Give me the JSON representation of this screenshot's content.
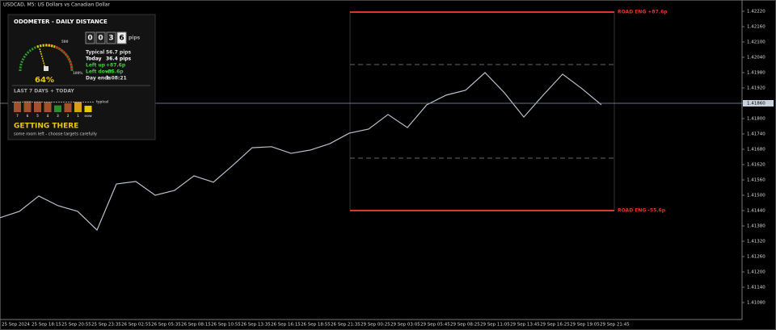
{
  "window": {
    "title": "USDCAD, M5:  US Dollars vs Canadian Dollar"
  },
  "odometer": {
    "title": "ODOMETER  -  DAILY DISTANCE",
    "digits": [
      "0",
      "0",
      "3",
      "6"
    ],
    "unit": "pips",
    "gauge_max": "500",
    "gauge_full": "100%",
    "percent": "64%",
    "stats": [
      [
        "Typical",
        "56.7 pips"
      ],
      [
        "Today",
        "36.4 pips"
      ],
      [
        "Left up",
        "+87.6p"
      ],
      [
        "Left down",
        "-55.6p"
      ],
      [
        "Day ends",
        "1:08:21"
      ]
    ],
    "history_title": "LAST 7 DAYS + TODAY",
    "typical_label": "typical",
    "history": {
      "labels": [
        "7",
        "6",
        "5",
        "4",
        "3",
        "2",
        "1",
        "now"
      ],
      "values": [
        60,
        62,
        60,
        58,
        38,
        50,
        58,
        36
      ],
      "colors": [
        "#a0522d",
        "#a0522d",
        "#a0522d",
        "#a0522d",
        "#2e8b2e",
        "#a0522d",
        "#d4a017",
        "#e8c800"
      ],
      "typical": 56.7
    },
    "status": "GETTING THERE",
    "note": "some room left - choose targets carefully"
  },
  "levels": {
    "upper": "ROAD ENG  +87.6p",
    "lower": "ROAD ENG  -55.6p"
  },
  "chart_data": {
    "type": "line",
    "color": "#b8c2cc",
    "values": [
      1.41412,
      1.41437,
      1.41497,
      1.41459,
      1.41437,
      1.41364,
      1.41544,
      1.41554,
      1.415,
      1.41519,
      1.41576,
      1.41551,
      1.41617,
      1.41686,
      1.4169,
      1.41664,
      1.41677,
      1.41702,
      1.41743,
      1.41759,
      1.41816,
      1.41765,
      1.41854,
      1.41892,
      1.41911,
      1.4198,
      1.41901,
      1.41806,
      1.41892,
      1.41974,
      1.41917,
      1.41854
    ],
    "current": {
      "value": 1.4186,
      "label": "1.41860"
    },
    "ylim": [
      1.4108,
      1.4222
    ],
    "yticks": [
      {
        "value": 1.4222,
        "label": "1.42220"
      },
      {
        "value": 1.4216,
        "label": "1.42160"
      },
      {
        "value": 1.421,
        "label": "1.42100"
      },
      {
        "value": 1.4204,
        "label": "1.42040"
      },
      {
        "value": 1.4198,
        "label": "1.41980"
      },
      {
        "value": 1.4192,
        "label": "1.41920"
      },
      {
        "value": 1.4186,
        "label": "1.41860"
      },
      {
        "value": 1.418,
        "label": "1.41800"
      },
      {
        "value": 1.4174,
        "label": "1.41740"
      },
      {
        "value": 1.4168,
        "label": "1.41680"
      },
      {
        "value": 1.4162,
        "label": "1.41620"
      },
      {
        "value": 1.4156,
        "label": "1.41560"
      },
      {
        "value": 1.415,
        "label": "1.41500"
      },
      {
        "value": 1.4144,
        "label": "1.41440"
      },
      {
        "value": 1.4138,
        "label": "1.41380"
      },
      {
        "value": 1.4132,
        "label": "1.41320"
      },
      {
        "value": 1.4126,
        "label": "1.41260"
      },
      {
        "value": 1.412,
        "label": "1.41200"
      },
      {
        "value": 1.4114,
        "label": "1.41140"
      },
      {
        "value": 1.4108,
        "label": "1.41080"
      }
    ],
    "xlabels": [
      "25 Sep 2024",
      "25 Sep 18:15",
      "25 Sep 20:55",
      "25 Sep 23:35",
      "26 Sep 02:55",
      "26 Sep 05:35",
      "26 Sep 08:15",
      "26 Sep 10:55",
      "26 Sep 13:35",
      "26 Sep 16:15",
      "26 Sep 18:55",
      "26 Sep 21:35",
      "29 Sep 00:25",
      "29 Sep 03:05",
      "29 Sep 05:45",
      "29 Sep 08:25",
      "29 Sep 11:05",
      "29 Sep 13:45",
      "29 Sep 16:25",
      "29 Sep 19:05",
      "29 Sep 21:45"
    ]
  }
}
